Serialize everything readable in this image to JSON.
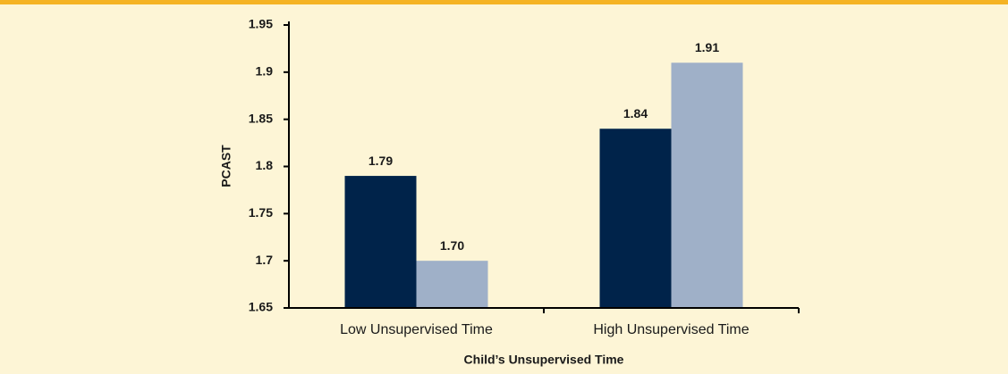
{
  "chart_data": {
    "type": "bar",
    "categories": [
      "Low Unsupervised Time",
      "High Unsupervised Time"
    ],
    "series": [
      {
        "color": "#00234a",
        "values": [
          1.79,
          1.84
        ]
      },
      {
        "color": "#9fb0c8",
        "values": [
          1.7,
          1.91
        ],
        "value_labels": [
          "1.70",
          "1.91"
        ]
      }
    ],
    "xlabel": "Child’s Unsupervised Time",
    "ylabel": "PCAST",
    "ylim": [
      1.65,
      1.95
    ],
    "yticks": [
      1.65,
      1.7,
      1.75,
      1.8,
      1.85,
      1.9,
      1.95
    ],
    "grid": false
  }
}
